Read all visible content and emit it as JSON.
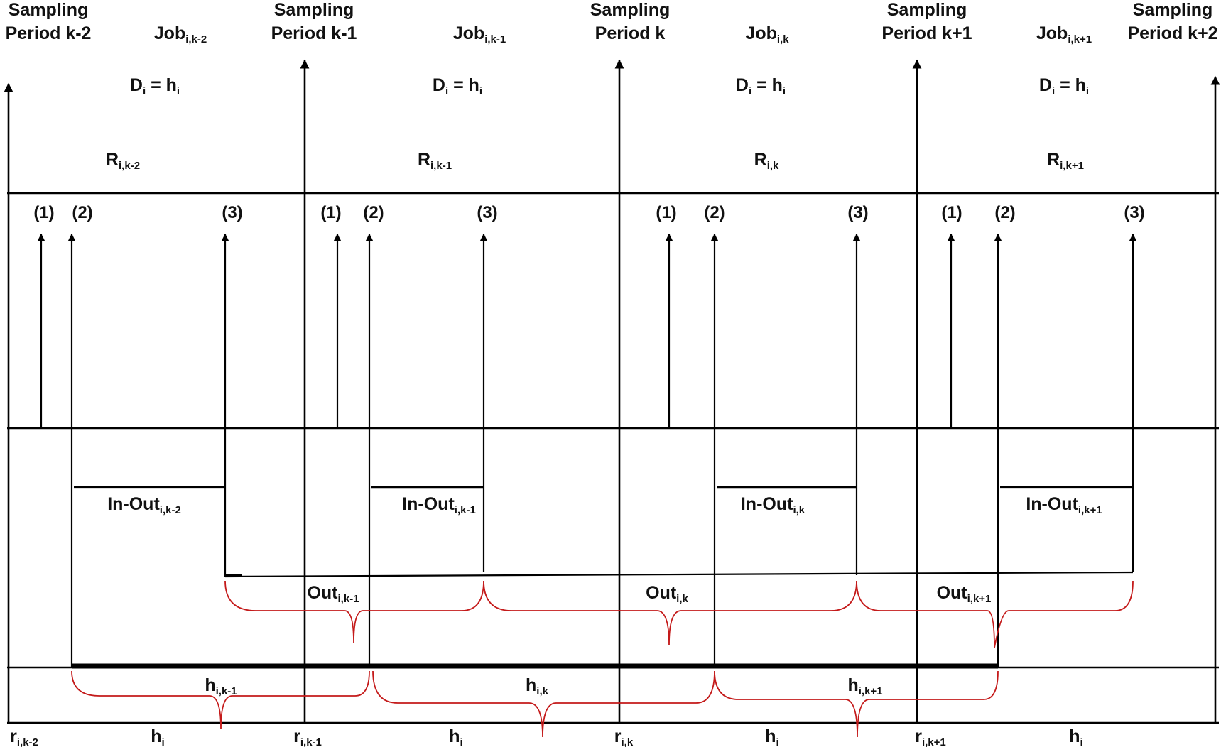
{
  "sampling_periods": [
    {
      "line1": "Sampling",
      "line2": "Period k-2"
    },
    {
      "line1": "Sampling",
      "line2": "Period k-1"
    },
    {
      "line1": "Sampling",
      "line2": "Period k"
    },
    {
      "line1": "Sampling",
      "line2": "Period k+1"
    },
    {
      "line1": "Sampling",
      "line2": "Period k+2"
    }
  ],
  "jobs": [
    {
      "base": "Job",
      "sub": "i,k-2"
    },
    {
      "base": "Job",
      "sub": "i,k-1"
    },
    {
      "base": "Job",
      "sub": "i,k"
    },
    {
      "base": "Job",
      "sub": "i,k+1"
    }
  ],
  "deadline": {
    "d": "D",
    "d_sub": "i",
    "eq": " = h",
    "h_sub": "i"
  },
  "response": [
    {
      "base": "R",
      "sub": "i,k-2"
    },
    {
      "base": "R",
      "sub": "i,k-1"
    },
    {
      "base": "R",
      "sub": "i,k"
    },
    {
      "base": "R",
      "sub": "i,k+1"
    }
  ],
  "markers": [
    "(1)",
    "(2)",
    "(3)"
  ],
  "in_out": [
    {
      "base": "In-Out",
      "sub": "i,k-2"
    },
    {
      "base": "In-Out",
      "sub": "i,k-1"
    },
    {
      "base": "In-Out",
      "sub": "i,k"
    },
    {
      "base": "In-Out",
      "sub": "i,k+1"
    }
  ],
  "out": [
    {
      "base": "Out",
      "sub": "i,k-1"
    },
    {
      "base": "Out",
      "sub": "i,k"
    },
    {
      "base": "Out",
      "sub": "i,k+1"
    }
  ],
  "h_intervals": [
    {
      "base": "h",
      "sub": "i,k-1"
    },
    {
      "base": "h",
      "sub": "i,k"
    },
    {
      "base": "h",
      "sub": "i,k+1"
    }
  ],
  "release": [
    {
      "base": "r",
      "sub": "i,k-2"
    },
    {
      "base": "r",
      "sub": "i,k-1"
    },
    {
      "base": "r",
      "sub": "i,k"
    },
    {
      "base": "r",
      "sub": "i,k+1"
    }
  ],
  "period_h": {
    "base": "h",
    "sub": "i"
  }
}
